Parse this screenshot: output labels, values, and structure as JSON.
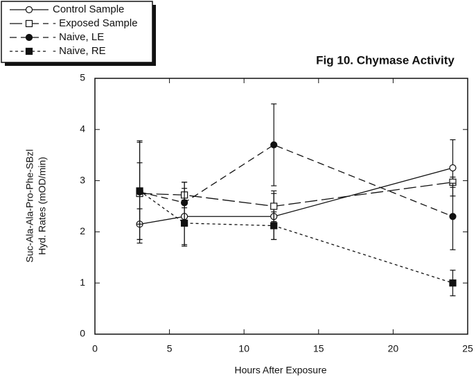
{
  "chart_data": {
    "type": "line",
    "title": "Fig 10.  Chymase Activity",
    "xlabel": "Hours After Exposure",
    "ylabel": [
      "Suc-Ala-Ala-Pro-Phe-SBzl",
      "Hyd. Rates (mOD/min)"
    ],
    "x": [
      3,
      6,
      12,
      24
    ],
    "series": [
      {
        "name": "Control Sample",
        "color": "#111111",
        "marker": "open-circle",
        "dash": "solid",
        "values": [
          2.15,
          2.3,
          2.3,
          3.25
        ],
        "errors": [
          0.3,
          0.55,
          0.45,
          0.55
        ]
      },
      {
        "name": "- Exposed Sample",
        "color": "#111111",
        "marker": "open-square",
        "dash": "long",
        "values": [
          2.75,
          2.72,
          2.5,
          2.97
        ],
        "errors": [
          0.6,
          0.25,
          0.3,
          0.1
        ]
      },
      {
        "name": "- Naive, LE",
        "color": "#111111",
        "marker": "filled-circle",
        "dash": "medium",
        "values": [
          2.78,
          2.57,
          3.7,
          2.3
        ],
        "errors": [
          1.0,
          0.4,
          0.8,
          0.65
        ]
      },
      {
        "name": "- Naive, RE",
        "color": "#111111",
        "marker": "filled-square",
        "dash": "short",
        "values": [
          2.8,
          2.17,
          2.12,
          1.0
        ],
        "errors": [
          0.95,
          0.45,
          0.27,
          0.25
        ]
      }
    ],
    "xlim": [
      0,
      25
    ],
    "xticks": [
      0,
      5,
      10,
      15,
      20,
      25
    ],
    "ylim": [
      0,
      5
    ],
    "yticks": [
      0,
      1,
      2,
      3,
      4,
      5
    ],
    "legend": "upper left"
  }
}
